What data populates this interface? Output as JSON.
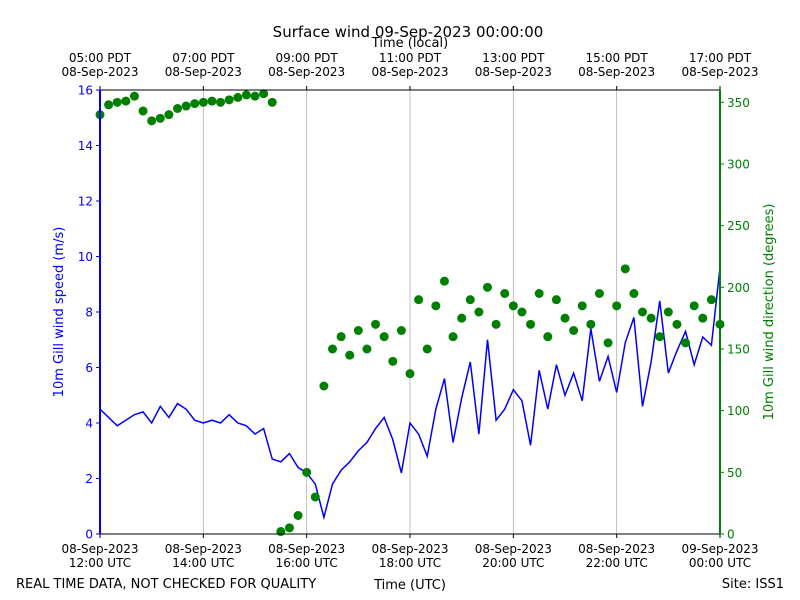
{
  "chart_data": {
    "type": "dual_axis_line_scatter",
    "title": "Surface wind 09-Sep-2023 00:00:00",
    "x_label_top": "Time (local)",
    "x_label": "Time (UTC)",
    "y_label": "10m Gill wind speed (m/s)",
    "y2_label": "10m Gill wind direction (degrees)",
    "footer_left": "REAL TIME DATA, NOT CHECKED FOR QUALITY",
    "footer_right": "Site: ISS1",
    "xlim": [
      "2023-09-08T12:00Z",
      "2023-09-09T00:00Z"
    ],
    "xticks": [
      {
        "value": "2023-09-08T12:00Z",
        "label": "08-Sep-2023\n12:00 UTC"
      },
      {
        "value": "2023-09-08T14:00Z",
        "label": "08-Sep-2023\n14:00 UTC"
      },
      {
        "value": "2023-09-08T16:00Z",
        "label": "08-Sep-2023\n16:00 UTC"
      },
      {
        "value": "2023-09-08T18:00Z",
        "label": "08-Sep-2023\n18:00 UTC"
      },
      {
        "value": "2023-09-08T20:00Z",
        "label": "08-Sep-2023\n20:00 UTC"
      },
      {
        "value": "2023-09-08T22:00Z",
        "label": "08-Sep-2023\n22:00 UTC"
      },
      {
        "value": "2023-09-09T00:00Z",
        "label": "09-Sep-2023\n00:00 UTC"
      }
    ],
    "xticks_top": [
      {
        "value": "2023-09-08T12:00Z",
        "label": "05:00 PDT\n08-Sep-2023"
      },
      {
        "value": "2023-09-08T14:00Z",
        "label": "07:00 PDT\n08-Sep-2023"
      },
      {
        "value": "2023-09-08T16:00Z",
        "label": "09:00 PDT\n08-Sep-2023"
      },
      {
        "value": "2023-09-08T18:00Z",
        "label": "11:00 PDT\n08-Sep-2023"
      },
      {
        "value": "2023-09-08T20:00Z",
        "label": "13:00 PDT\n08-Sep-2023"
      },
      {
        "value": "2023-09-08T22:00Z",
        "label": "15:00 PDT\n08-Sep-2023"
      },
      {
        "value": "2023-09-09T00:00Z",
        "label": "17:00 PDT\n08-Sep-2023"
      }
    ],
    "grid": true,
    "ylim": [
      0,
      16
    ],
    "yticks": [
      0,
      2,
      4,
      6,
      8,
      10,
      12,
      14,
      16
    ],
    "y2lim": [
      0,
      360
    ],
    "y2ticks": [
      0,
      50,
      100,
      150,
      200,
      250,
      300,
      350
    ],
    "x": [
      "2023-09-08T12:00Z",
      "2023-09-08T12:10Z",
      "2023-09-08T12:20Z",
      "2023-09-08T12:30Z",
      "2023-09-08T12:40Z",
      "2023-09-08T12:50Z",
      "2023-09-08T13:00Z",
      "2023-09-08T13:10Z",
      "2023-09-08T13:20Z",
      "2023-09-08T13:30Z",
      "2023-09-08T13:40Z",
      "2023-09-08T13:50Z",
      "2023-09-08T14:00Z",
      "2023-09-08T14:10Z",
      "2023-09-08T14:20Z",
      "2023-09-08T14:30Z",
      "2023-09-08T14:40Z",
      "2023-09-08T14:50Z",
      "2023-09-08T15:00Z",
      "2023-09-08T15:10Z",
      "2023-09-08T15:20Z",
      "2023-09-08T15:30Z",
      "2023-09-08T15:40Z",
      "2023-09-08T15:50Z",
      "2023-09-08T16:00Z",
      "2023-09-08T16:10Z",
      "2023-09-08T16:20Z",
      "2023-09-08T16:30Z",
      "2023-09-08T16:40Z",
      "2023-09-08T16:50Z",
      "2023-09-08T17:00Z",
      "2023-09-08T17:10Z",
      "2023-09-08T17:20Z",
      "2023-09-08T17:30Z",
      "2023-09-08T17:40Z",
      "2023-09-08T17:50Z",
      "2023-09-08T18:00Z",
      "2023-09-08T18:10Z",
      "2023-09-08T18:20Z",
      "2023-09-08T18:30Z",
      "2023-09-08T18:40Z",
      "2023-09-08T18:50Z",
      "2023-09-08T19:00Z",
      "2023-09-08T19:10Z",
      "2023-09-08T19:20Z",
      "2023-09-08T19:30Z",
      "2023-09-08T19:40Z",
      "2023-09-08T19:50Z",
      "2023-09-08T20:00Z",
      "2023-09-08T20:10Z",
      "2023-09-08T20:20Z",
      "2023-09-08T20:30Z",
      "2023-09-08T20:40Z",
      "2023-09-08T20:50Z",
      "2023-09-08T21:00Z",
      "2023-09-08T21:10Z",
      "2023-09-08T21:20Z",
      "2023-09-08T21:30Z",
      "2023-09-08T21:40Z",
      "2023-09-08T21:50Z",
      "2023-09-08T22:00Z",
      "2023-09-08T22:10Z",
      "2023-09-08T22:20Z",
      "2023-09-08T22:30Z",
      "2023-09-08T22:40Z",
      "2023-09-08T22:50Z",
      "2023-09-08T23:00Z",
      "2023-09-08T23:10Z",
      "2023-09-08T23:20Z",
      "2023-09-08T23:30Z",
      "2023-09-08T23:40Z",
      "2023-09-08T23:50Z",
      "2023-09-09T00:00Z"
    ],
    "series": [
      {
        "name": "10m Gill wind speed",
        "kind": "line",
        "axis": "y",
        "color": "#0000ff",
        "values": [
          4.5,
          4.2,
          3.9,
          4.1,
          4.3,
          4.4,
          4.0,
          4.6,
          4.2,
          4.7,
          4.5,
          4.1,
          4.0,
          4.1,
          4.0,
          4.3,
          4.0,
          3.9,
          3.6,
          3.8,
          2.7,
          2.6,
          2.9,
          2.4,
          2.2,
          1.8,
          0.6,
          1.8,
          2.3,
          2.6,
          3.0,
          3.3,
          3.8,
          4.2,
          3.4,
          2.2,
          4.0,
          3.6,
          2.8,
          4.5,
          5.6,
          3.3,
          4.9,
          6.2,
          3.6,
          7.0,
          4.1,
          4.5,
          5.2,
          4.8,
          3.2,
          5.9,
          4.5,
          6.1,
          5.0,
          5.8,
          4.8,
          7.4,
          5.5,
          6.4,
          5.1,
          6.9,
          7.8,
          4.6,
          6.2,
          8.4,
          5.8,
          6.6,
          7.3,
          6.1,
          7.1,
          6.8,
          9.6
        ]
      },
      {
        "name": "10m Gill wind direction",
        "kind": "scatter",
        "axis": "y2",
        "color": "#008000",
        "values": [
          340,
          348,
          350,
          351,
          355,
          343,
          335,
          337,
          340,
          345,
          347,
          349,
          350,
          351,
          350,
          352,
          354,
          356,
          355,
          357,
          350,
          2,
          5,
          15,
          50,
          30,
          120,
          150,
          160,
          145,
          165,
          150,
          170,
          160,
          140,
          165,
          130,
          190,
          150,
          185,
          205,
          160,
          175,
          190,
          180,
          200,
          170,
          195,
          185,
          180,
          170,
          195,
          160,
          190,
          175,
          165,
          185,
          170,
          195,
          155,
          185,
          215,
          195,
          180,
          175,
          160,
          180,
          170,
          155,
          185,
          175,
          190,
          170
        ]
      }
    ]
  }
}
